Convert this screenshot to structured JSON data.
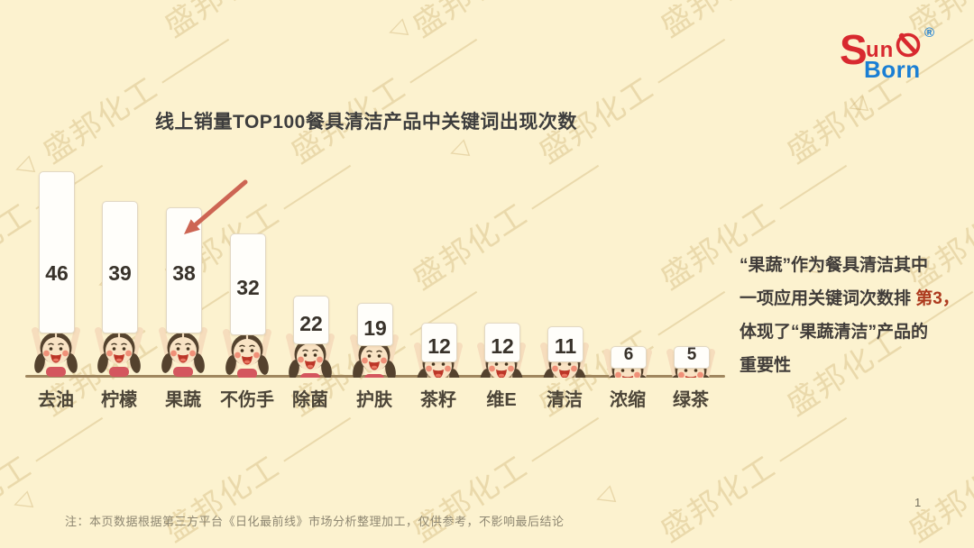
{
  "slide": {
    "background_color": "#fcf2cf",
    "watermark_text": "盛邦化工",
    "note": "注：本页数据根据第三方平台《日化最前线》市场分析整理加工，仅供参考，不影响最后结论",
    "page_number": "1"
  },
  "chart_data": {
    "type": "bar",
    "title": "线上销量TOP100餐具清洁产品中关键词出现次数",
    "categories": [
      "去油",
      "柠檬",
      "果蔬",
      "不伤手",
      "除菌",
      "护肤",
      "茶籽",
      "维E",
      "清洁",
      "浓缩",
      "绿茶"
    ],
    "values": [
      46,
      39,
      38,
      32,
      22,
      19,
      12,
      12,
      11,
      6,
      5
    ],
    "bar_color": "#fffefa",
    "value_label_color": "#38322a",
    "highlight_index": 2,
    "highlight_category": "果蔬",
    "annotation": "red arrow pointing at 果蔬 bar",
    "arrow_color": "#cd6553",
    "legend": "none",
    "grid": "off",
    "baseline_color": "#a0875f"
  },
  "insight": {
    "line1": "“果蔬”作为餐具清洁其中",
    "line2": "一项应用关键词次数排 ",
    "highlight": "第3，",
    "line3": "体现了“果蔬清洁”产品的",
    "line4": "重要性",
    "text_color": "#403c39",
    "highlight_color": "#ad3a1e"
  },
  "logo": {
    "s": "S",
    "un": "un",
    "born": "Born",
    "reg": "®",
    "sun_color": "#d8292f",
    "born_color": "#1b7fd4"
  }
}
